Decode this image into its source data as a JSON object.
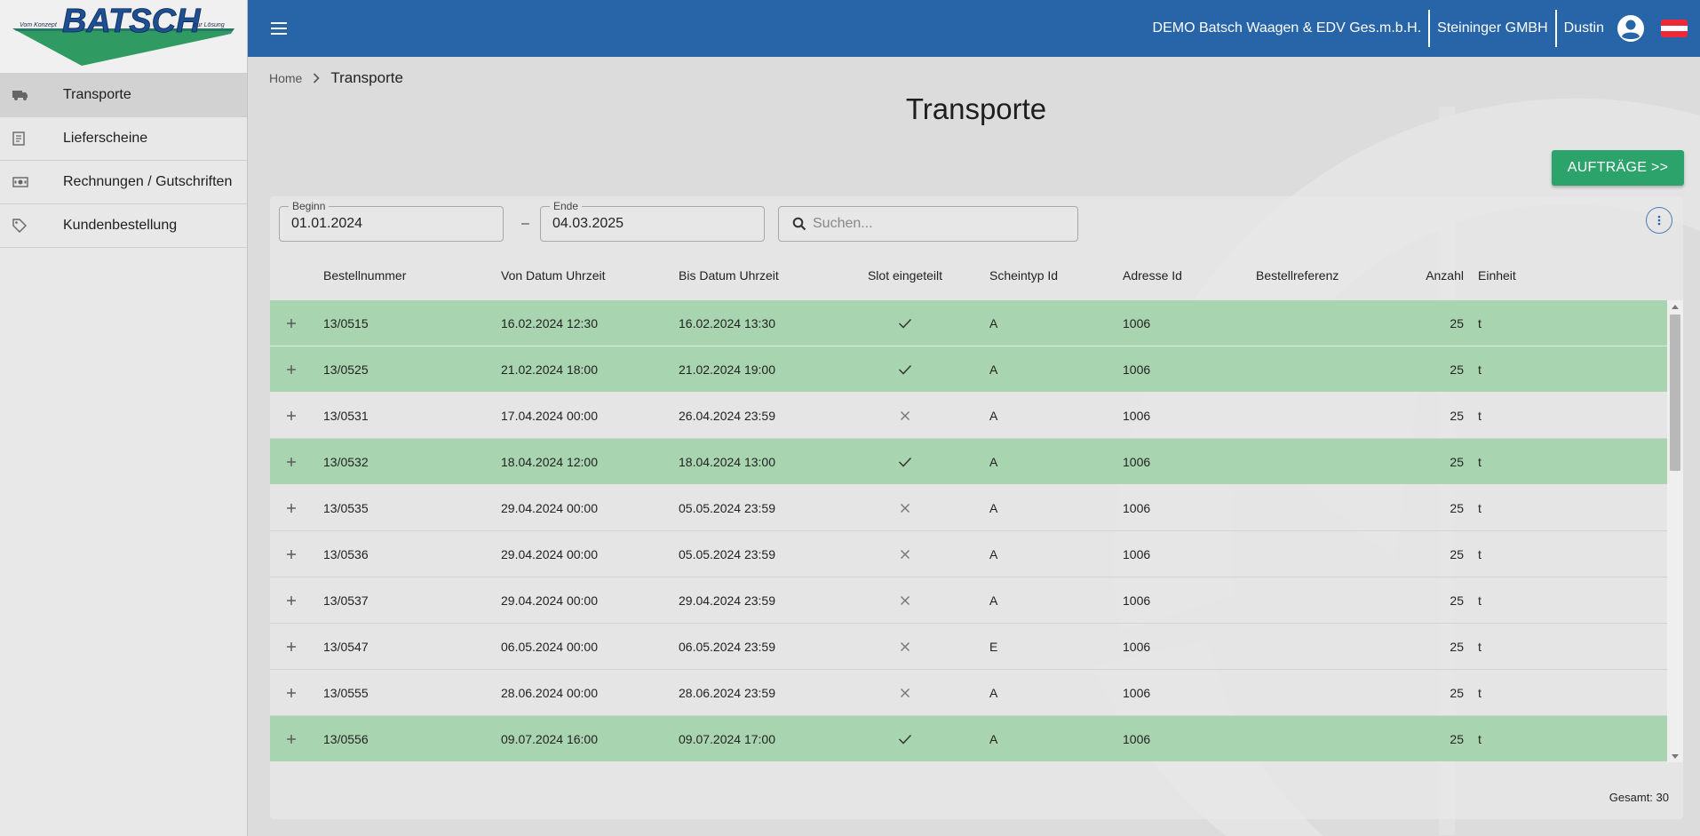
{
  "logo": {
    "brand": "BATSCH",
    "left_tag": "Vom Konzept",
    "right_tag": "zur Lösung"
  },
  "sidebar": {
    "items": [
      {
        "label": "Transporte",
        "icon": "truck-icon",
        "active": true
      },
      {
        "label": "Lieferscheine",
        "icon": "receipt-icon",
        "active": false
      },
      {
        "label": "Rechnungen / Gutschriften",
        "icon": "money-icon",
        "active": false
      },
      {
        "label": "Kundenbestellung",
        "icon": "tag-icon",
        "active": false
      }
    ]
  },
  "header": {
    "company": "DEMO Batsch Waagen & EDV Ges.m.b.H.",
    "customer": "Steininger GMBH",
    "user": "Dustin",
    "colors": {
      "bar": "#2765a8"
    }
  },
  "breadcrumb": {
    "home": "Home",
    "current": "Transporte"
  },
  "page": {
    "title": "Transporte",
    "action_button": "AUFTRÄGE >>"
  },
  "filters": {
    "begin_label": "Beginn",
    "begin_value": "01.01.2024",
    "end_label": "Ende",
    "end_value": "04.03.2025",
    "separator": "–",
    "search_placeholder": "Suchen..."
  },
  "table": {
    "columns": {
      "nr": "Bestellnummer",
      "von": "Von Datum Uhrzeit",
      "bis": "Bis Datum Uhrzeit",
      "slot": "Slot eingeteilt",
      "typ": "Scheintyp Id",
      "adr": "Adresse Id",
      "ref": "Bestellreferenz",
      "anz": "Anzahl",
      "einh": "Einheit"
    },
    "rows": [
      {
        "nr": "13/0515",
        "von": "16.02.2024 12:30",
        "bis": "16.02.2024 13:30",
        "slot": true,
        "typ": "A",
        "adr": "1006",
        "ref": "",
        "anz": "25",
        "einh": "t"
      },
      {
        "nr": "13/0525",
        "von": "21.02.2024 18:00",
        "bis": "21.02.2024 19:00",
        "slot": true,
        "typ": "A",
        "adr": "1006",
        "ref": "",
        "anz": "25",
        "einh": "t"
      },
      {
        "nr": "13/0531",
        "von": "17.04.2024 00:00",
        "bis": "26.04.2024 23:59",
        "slot": false,
        "typ": "A",
        "adr": "1006",
        "ref": "",
        "anz": "25",
        "einh": "t"
      },
      {
        "nr": "13/0532",
        "von": "18.04.2024 12:00",
        "bis": "18.04.2024 13:00",
        "slot": true,
        "typ": "A",
        "adr": "1006",
        "ref": "",
        "anz": "25",
        "einh": "t"
      },
      {
        "nr": "13/0535",
        "von": "29.04.2024 00:00",
        "bis": "05.05.2024 23:59",
        "slot": false,
        "typ": "A",
        "adr": "1006",
        "ref": "",
        "anz": "25",
        "einh": "t"
      },
      {
        "nr": "13/0536",
        "von": "29.04.2024 00:00",
        "bis": "05.05.2024 23:59",
        "slot": false,
        "typ": "A",
        "adr": "1006",
        "ref": "",
        "anz": "25",
        "einh": "t"
      },
      {
        "nr": "13/0537",
        "von": "29.04.2024 00:00",
        "bis": "29.04.2024 23:59",
        "slot": false,
        "typ": "A",
        "adr": "1006",
        "ref": "",
        "anz": "25",
        "einh": "t"
      },
      {
        "nr": "13/0547",
        "von": "06.05.2024 00:00",
        "bis": "06.05.2024 23:59",
        "slot": false,
        "typ": "E",
        "adr": "1006",
        "ref": "",
        "anz": "25",
        "einh": "t"
      },
      {
        "nr": "13/0555",
        "von": "28.06.2024 00:00",
        "bis": "28.06.2024 23:59",
        "slot": false,
        "typ": "A",
        "adr": "1006",
        "ref": "",
        "anz": "25",
        "einh": "t"
      },
      {
        "nr": "13/0556",
        "von": "09.07.2024 16:00",
        "bis": "09.07.2024 17:00",
        "slot": true,
        "typ": "A",
        "adr": "1006",
        "ref": "",
        "anz": "25",
        "einh": "t"
      }
    ],
    "total": "Gesamt: 30",
    "colors": {
      "slot_row": "#a8d5b0"
    }
  }
}
